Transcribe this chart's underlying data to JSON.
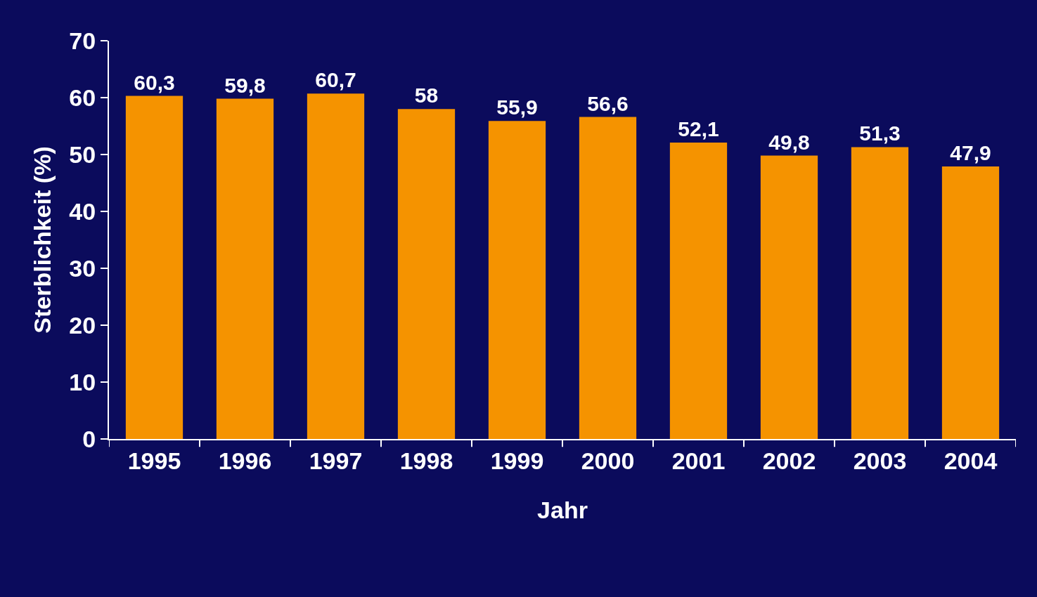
{
  "chart_data": {
    "type": "bar",
    "xlabel": "Jahr",
    "ylabel": "Sterblichkeit (%)",
    "categories": [
      "1995",
      "1996",
      "1997",
      "1998",
      "1999",
      "2000",
      "2001",
      "2002",
      "2003",
      "2004"
    ],
    "values": [
      60.3,
      59.8,
      60.7,
      58,
      55.9,
      56.6,
      52.1,
      49.8,
      51.3,
      47.9
    ],
    "value_labels": [
      "60,3",
      "59,8",
      "60,7",
      "58",
      "55,9",
      "56,6",
      "52,1",
      "49,8",
      "51,3",
      "47,9"
    ],
    "color": "#f59300",
    "ylim": [
      0,
      70
    ],
    "yticks": [
      0,
      10,
      20,
      30,
      40,
      50,
      60,
      70
    ],
    "grid": false
  }
}
